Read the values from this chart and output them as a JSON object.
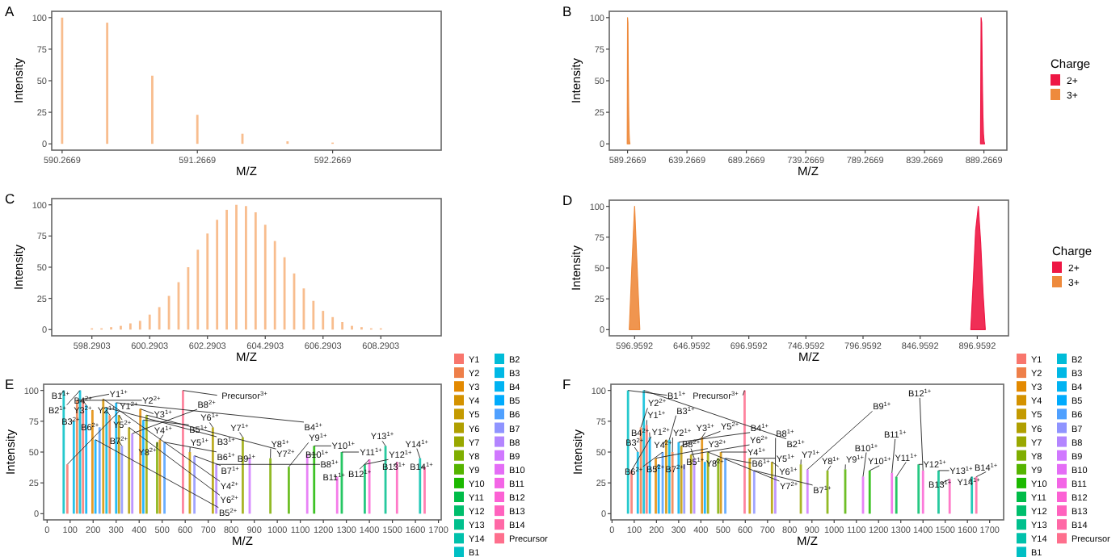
{
  "chart_data": [
    {
      "type": "bar",
      "title": "A",
      "xlabel": "M/Z",
      "ylabel": "Intensity",
      "xlim": [
        590.19,
        593.07
      ],
      "ylim": [
        -5,
        105
      ],
      "xticks": [
        590.2669,
        591.2669,
        592.2669
      ],
      "yticks": [
        0,
        25,
        50,
        75,
        100
      ],
      "grid": false,
      "legend": false,
      "series": [
        {
          "color": "#F7B27A",
          "x": [
            590.2669,
            590.6002,
            590.9336,
            591.2669,
            591.6002,
            591.9336,
            592.2669
          ],
          "values": [
            100,
            96,
            54,
            23,
            8,
            2,
            1
          ]
        }
      ]
    },
    {
      "type": "area",
      "title": "B",
      "xlabel": "M/Z",
      "ylabel": "Intensity",
      "xlim": [
        573.9,
        908.6
      ],
      "ylim": [
        -5,
        105
      ],
      "xticks": [
        589.2669,
        639.2669,
        689.2669,
        739.2669,
        789.2669,
        839.2669,
        889.2669
      ],
      "yticks": [
        0,
        25,
        50,
        75,
        100
      ],
      "grid": false,
      "legend": "right",
      "legend_title": "Charge",
      "series": [
        {
          "name": "2+",
          "color": "#EE1744",
          "x": [
            886.4,
            886.9,
            887.4,
            887.9,
            888.4,
            888.9,
            889.4,
            889.9
          ],
          "values": [
            0,
            100,
            96,
            54,
            23,
            8,
            2,
            0
          ]
        },
        {
          "name": "3+",
          "color": "#EE8A3C",
          "x": [
            589.0,
            589.27,
            589.6,
            589.93,
            590.27,
            590.6,
            590.93,
            591.3
          ],
          "values": [
            0,
            100,
            96,
            54,
            23,
            8,
            2,
            0
          ]
        }
      ]
    },
    {
      "type": "bar",
      "title": "C",
      "xlabel": "M/Z",
      "ylabel": "Intensity",
      "xlim": [
        596.9,
        610.38
      ],
      "ylim": [
        -5,
        105
      ],
      "xticks": [
        598.2903,
        600.2903,
        602.2903,
        604.2903,
        606.2903,
        608.2903
      ],
      "yticks": [
        0,
        25,
        50,
        75,
        100
      ],
      "grid": false,
      "legend": false,
      "series": [
        {
          "color": "#F7B27A",
          "x": [
            598.2903,
            598.6236,
            598.957,
            599.2903,
            599.6236,
            599.957,
            600.2903,
            600.6236,
            600.957,
            601.2903,
            601.6236,
            601.957,
            602.2903,
            602.6236,
            602.957,
            603.2903,
            603.6236,
            603.957,
            604.2903,
            604.6236,
            604.957,
            605.2903,
            605.6236,
            605.957,
            606.2903,
            606.6236,
            606.957,
            607.2903,
            607.6236,
            607.957,
            608.2903
          ],
          "values": [
            1,
            1,
            2,
            3,
            5,
            7,
            12,
            18,
            27,
            38,
            50,
            64,
            77,
            88,
            96,
            100,
            99,
            94,
            84,
            71,
            58,
            45,
            33,
            23,
            15,
            10,
            6,
            3,
            2,
            1,
            1
          ]
        }
      ]
    },
    {
      "type": "area",
      "title": "D",
      "xlabel": "M/Z",
      "ylabel": "Intensity",
      "xlim": [
        574.8,
        924.3
      ],
      "ylim": [
        -5,
        105
      ],
      "xticks": [
        596.9592,
        646.9592,
        696.9592,
        746.9592,
        796.9592,
        846.9592,
        896.9592
      ],
      "yticks": [
        0,
        25,
        50,
        75,
        100
      ],
      "grid": false,
      "legend": "right",
      "legend_title": "Charge",
      "series": [
        {
          "name": "2+",
          "color": "#EE1744",
          "x": [
            891.3,
            893.5,
            895.5,
            897.9,
            900,
            902,
            904
          ],
          "values": [
            0,
            40,
            80,
            100,
            70,
            30,
            0
          ]
        },
        {
          "name": "3+",
          "color": "#EE8A3C",
          "x": [
            592.3,
            594.5,
            596.96,
            599.2,
            601.5
          ],
          "values": [
            0,
            50,
            100,
            50,
            0
          ]
        }
      ]
    },
    {
      "type": "bar",
      "title": "E",
      "xlabel": "M/Z",
      "ylabel": "Intensity",
      "xlim": [
        -15,
        1712
      ],
      "ylim": [
        -5,
        105
      ],
      "xticks": [
        0,
        100,
        200,
        300,
        400,
        500,
        600,
        700,
        800,
        900,
        1000,
        1100,
        1200,
        1300,
        1400,
        1500,
        1600,
        1700
      ],
      "yticks": [
        0,
        25,
        50,
        75,
        100
      ],
      "grid": false,
      "legend": "right",
      "series": [
        {
          "name": "Y1",
          "color": "#F8766D",
          "x": [
            156,
            88
          ],
          "values": [
            93,
            40
          ]
        },
        {
          "name": "Y2",
          "color": "#EE7F49",
          "x": [
            272,
            130
          ],
          "values": [
            80,
            92
          ]
        },
        {
          "name": "Y3",
          "color": "#E38900",
          "x": [
            405,
            197
          ],
          "values": [
            85,
            84
          ]
        },
        {
          "name": "Y4",
          "color": "#D49200",
          "x": [
            490,
            244
          ],
          "values": [
            60,
            93
          ]
        },
        {
          "name": "Y5",
          "color": "#C49A00",
          "x": [
            620,
            312
          ],
          "values": [
            50,
            80
          ]
        },
        {
          "name": "Y6",
          "color": "#B09F00",
          "x": [
            720,
            356
          ],
          "values": [
            70,
            70
          ]
        },
        {
          "name": "Y7",
          "color": "#99A800",
          "x": [
            850,
            432
          ],
          "values": [
            62,
            80
          ]
        },
        {
          "name": "Y8",
          "color": "#7FAE00",
          "x": [
            970,
            478
          ],
          "values": [
            45,
            58
          ]
        },
        {
          "name": "Y9",
          "color": "#55B400",
          "x": [
            1050
          ],
          "values": [
            38
          ]
        },
        {
          "name": "Y10",
          "color": "#1CB900",
          "x": [
            1160
          ],
          "values": [
            55
          ]
        },
        {
          "name": "Y11",
          "color": "#00BC48",
          "x": [
            1280
          ],
          "values": [
            50
          ]
        },
        {
          "name": "Y12",
          "color": "#00BE6C",
          "x": [
            1380
          ],
          "values": [
            40
          ]
        },
        {
          "name": "Y13",
          "color": "#00C08D",
          "x": [
            1470
          ],
          "values": [
            55
          ]
        },
        {
          "name": "Y14",
          "color": "#00C1AB",
          "x": [
            1620
          ],
          "values": [
            45
          ]
        },
        {
          "name": "B1",
          "color": "#00BFC4",
          "x": [
            72
          ],
          "values": [
            100
          ]
        },
        {
          "name": "B2",
          "color": "#00BCD8",
          "x": [
            143
          ],
          "values": [
            100
          ]
        },
        {
          "name": "B3",
          "color": "#00B8E5",
          "x": [
            258,
            116
          ],
          "values": [
            86,
            75
          ]
        },
        {
          "name": "B4",
          "color": "#00B3F2",
          "x": [
            300,
            170
          ],
          "values": [
            90,
            88
          ]
        },
        {
          "name": "B5",
          "color": "#00ABFD",
          "x": [
            418,
            210
          ],
          "values": [
            76,
            60
          ]
        },
        {
          "name": "B6",
          "color": "#4FA0FF",
          "x": [
            510,
            228
          ],
          "values": [
            58,
            70
          ]
        },
        {
          "name": "B7",
          "color": "#8F94FF",
          "x": [
            640,
            325
          ],
          "values": [
            47,
            55
          ]
        },
        {
          "name": "B8",
          "color": "#B385FF",
          "x": [
            735,
            370
          ],
          "values": [
            40,
            65
          ]
        },
        {
          "name": "B9",
          "color": "#D078FF",
          "x": [
            880
          ],
          "values": [
            45
          ]
        },
        {
          "name": "B10",
          "color": "#E46DF6",
          "x": [
            1130
          ],
          "values": [
            48
          ]
        },
        {
          "name": "B11",
          "color": "#F365E6",
          "x": [
            1260
          ],
          "values": [
            30
          ]
        },
        {
          "name": "B12",
          "color": "#FC61D4",
          "x": [
            1400
          ],
          "values": [
            44
          ]
        },
        {
          "name": "B13",
          "color": "#FF63BE",
          "x": [
            1520
          ],
          "values": [
            42
          ]
        },
        {
          "name": "B14",
          "color": "#FF68A6",
          "x": [
            1640
          ],
          "values": [
            38
          ]
        },
        {
          "name": "Precursor",
          "color": "#FE6F8D",
          "x": [
            590.27
          ],
          "values": [
            100
          ]
        }
      ],
      "annotations": [
        {
          "text": "Y1$^{1+}$",
          "x": 156,
          "y": 93
        },
        {
          "text": "Y1$^{2+}$",
          "x": 88,
          "y": 40
        },
        {
          "text": "Y2$^{1+}$",
          "x": 272,
          "y": 80
        },
        {
          "text": "Y2$^{2+}$",
          "x": 130,
          "y": 92
        },
        {
          "text": "Y3$^{1+}$",
          "x": 405,
          "y": 85
        },
        {
          "text": "Y3$^{2+}$",
          "x": 197,
          "y": 84
        },
        {
          "text": "Y4$^{1+}$",
          "x": 490,
          "y": 60
        },
        {
          "text": "Y4$^{2+}$",
          "x": 244,
          "y": 93
        },
        {
          "text": "Y5$^{1+}$",
          "x": 620,
          "y": 50
        },
        {
          "text": "Y5$^{2+}$",
          "x": 312,
          "y": 80
        },
        {
          "text": "Y6$^{1+}$",
          "x": 720,
          "y": 70
        },
        {
          "text": "Y6$^{2+}$",
          "x": 356,
          "y": 70
        },
        {
          "text": "Y7$^{1+}$",
          "x": 850,
          "y": 62
        },
        {
          "text": "Y7$^{2+}$",
          "x": 432,
          "y": 80
        },
        {
          "text": "Y8$^{1+}$",
          "x": 970,
          "y": 45
        },
        {
          "text": "Y8$^{2+}$",
          "x": 478,
          "y": 58
        },
        {
          "text": "Y9$^{1+}$",
          "x": 1050,
          "y": 38
        },
        {
          "text": "Y10$^{1+}$",
          "x": 1160,
          "y": 55
        },
        {
          "text": "Y11$^{1+}$",
          "x": 1280,
          "y": 50
        },
        {
          "text": "Y12$^{1+}$",
          "x": 1380,
          "y": 40
        },
        {
          "text": "Y13$^{1+}$",
          "x": 1470,
          "y": 55
        },
        {
          "text": "Y14$^{1+}$",
          "x": 1620,
          "y": 45
        },
        {
          "text": "B1$^{1+}$",
          "x": 72,
          "y": 100
        },
        {
          "text": "B2$^{1+}$",
          "x": 143,
          "y": 100
        },
        {
          "text": "B3$^{1+}$",
          "x": 258,
          "y": 86
        },
        {
          "text": "B3$^{2+}$",
          "x": 116,
          "y": 75
        },
        {
          "text": "B4$^{1+}$",
          "x": 300,
          "y": 90
        },
        {
          "text": "B4$^{2+}$",
          "x": 170,
          "y": 88
        },
        {
          "text": "B5$^{1+}$",
          "x": 418,
          "y": 76
        },
        {
          "text": "B5$^{2+}$",
          "x": 210,
          "y": 60
        },
        {
          "text": "B6$^{1+}$",
          "x": 510,
          "y": 58
        },
        {
          "text": "B6$^{2+}$",
          "x": 228,
          "y": 70
        },
        {
          "text": "B7$^{1+}$",
          "x": 640,
          "y": 47
        },
        {
          "text": "B7$^{2+}$",
          "x": 325,
          "y": 55
        },
        {
          "text": "B8$^{1+}$",
          "x": 735,
          "y": 40
        },
        {
          "text": "B8$^{2+}$",
          "x": 370,
          "y": 65
        },
        {
          "text": "B9$^{1+}$",
          "x": 880,
          "y": 45
        },
        {
          "text": "B10$^{1+}$",
          "x": 1130,
          "y": 48
        },
        {
          "text": "B11$^{1+}$",
          "x": 1260,
          "y": 30
        },
        {
          "text": "B12$^{1+}$",
          "x": 1400,
          "y": 44
        },
        {
          "text": "B13$^{1+}$",
          "x": 1520,
          "y": 42
        },
        {
          "text": "B14$^{1+}$",
          "x": 1640,
          "y": 38
        },
        {
          "text": "Precursor$^{3+}$",
          "x": 590.27,
          "y": 100
        }
      ]
    },
    {
      "type": "bar",
      "title": "F",
      "xlabel": "M/Z",
      "ylabel": "Intensity",
      "xlim": [
        -5,
        1763
      ],
      "ylim": [
        -5,
        105
      ],
      "xticks": [
        0,
        100,
        200,
        300,
        400,
        500,
        600,
        700,
        800,
        900,
        1000,
        1100,
        1200,
        1300,
        1400,
        1500,
        1600,
        1700
      ],
      "yticks": [
        0,
        25,
        50,
        75,
        100
      ],
      "grid": false,
      "legend": "right",
      "series": [
        {
          "name": "Y1",
          "color": "#F8766D",
          "x": [
            156,
            88
          ],
          "values": [
            72,
            35
          ]
        },
        {
          "name": "Y2",
          "color": "#EE7F49",
          "x": [
            272,
            130
          ],
          "values": [
            50,
            70
          ]
        },
        {
          "name": "Y3",
          "color": "#E38900",
          "x": [
            405,
            197
          ],
          "values": [
            62,
            45
          ]
        },
        {
          "name": "Y4",
          "color": "#D49200",
          "x": [
            490,
            244
          ],
          "values": [
            50,
            60
          ]
        },
        {
          "name": "Y5",
          "color": "#C49A00",
          "x": [
            620,
            312
          ],
          "values": [
            45,
            55
          ]
        },
        {
          "name": "Y6",
          "color": "#B09F00",
          "x": [
            720,
            356
          ],
          "values": [
            42,
            48
          ]
        },
        {
          "name": "Y7",
          "color": "#99A800",
          "x": [
            850,
            432
          ],
          "values": [
            40,
            50
          ]
        },
        {
          "name": "Y8",
          "color": "#7FAE00",
          "x": [
            970,
            478
          ],
          "values": [
            35,
            45
          ]
        },
        {
          "name": "Y9",
          "color": "#55B400",
          "x": [
            1050
          ],
          "values": [
            36
          ]
        },
        {
          "name": "Y10",
          "color": "#1CB900",
          "x": [
            1160
          ],
          "values": [
            35
          ]
        },
        {
          "name": "Y11",
          "color": "#00BC48",
          "x": [
            1280
          ],
          "values": [
            30
          ]
        },
        {
          "name": "Y12",
          "color": "#00BE6C",
          "x": [
            1380
          ],
          "values": [
            40
          ]
        },
        {
          "name": "Y13",
          "color": "#00C08D",
          "x": [
            1470
          ],
          "values": [
            35
          ]
        },
        {
          "name": "Y14",
          "color": "#00C1AB",
          "x": [
            1620
          ],
          "values": [
            30
          ]
        },
        {
          "name": "B1",
          "color": "#00BFC4",
          "x": [
            72
          ],
          "values": [
            100
          ]
        },
        {
          "name": "B2",
          "color": "#00BCD8",
          "x": [
            143
          ],
          "values": [
            100
          ]
        },
        {
          "name": "B3",
          "color": "#00B8E5",
          "x": [
            258,
            116
          ],
          "values": [
            60,
            50
          ]
        },
        {
          "name": "B4",
          "color": "#00B3F2",
          "x": [
            300,
            170
          ],
          "values": [
            58,
            62
          ]
        },
        {
          "name": "B5",
          "color": "#00ABFD",
          "x": [
            418,
            210
          ],
          "values": [
            42,
            40
          ]
        },
        {
          "name": "B6",
          "color": "#4FA0FF",
          "x": [
            510,
            228
          ],
          "values": [
            45,
            50
          ]
        },
        {
          "name": "B7",
          "color": "#8F94FF",
          "x": [
            640,
            325
          ],
          "values": [
            35,
            40
          ]
        },
        {
          "name": "B8",
          "color": "#B385FF",
          "x": [
            735,
            370
          ],
          "values": [
            30,
            45
          ]
        },
        {
          "name": "B9",
          "color": "#D078FF",
          "x": [
            880
          ],
          "values": [
            36
          ]
        },
        {
          "name": "B10",
          "color": "#E46DF6",
          "x": [
            1130
          ],
          "values": [
            30
          ]
        },
        {
          "name": "B11",
          "color": "#F365E6",
          "x": [
            1260
          ],
          "values": [
            33
          ]
        },
        {
          "name": "B12",
          "color": "#FC61D4",
          "x": [
            1400
          ],
          "values": [
            35
          ]
        },
        {
          "name": "B13",
          "color": "#FF63BE",
          "x": [
            1520
          ],
          "values": [
            28
          ]
        },
        {
          "name": "B14",
          "color": "#FF68A6",
          "x": [
            1640
          ],
          "values": [
            30
          ]
        },
        {
          "name": "Precursor",
          "color": "#FE6F8D",
          "x": [
            596.96
          ],
          "values": [
            100
          ]
        }
      ],
      "annotations": [
        {
          "text": "Y1$^{1+}$",
          "x": 156,
          "y": 72
        },
        {
          "text": "Y1$^{2+}$",
          "x": 88,
          "y": 35
        },
        {
          "text": "Y2$^{1+}$",
          "x": 272,
          "y": 50
        },
        {
          "text": "Y2$^{2+}$",
          "x": 130,
          "y": 70
        },
        {
          "text": "Y3$^{1+}$",
          "x": 405,
          "y": 62
        },
        {
          "text": "Y3$^{2+}$",
          "x": 197,
          "y": 45
        },
        {
          "text": "Y4$^{1+}$",
          "x": 490,
          "y": 50
        },
        {
          "text": "Y4$^{2+}$",
          "x": 244,
          "y": 60
        },
        {
          "text": "Y5$^{1+}$",
          "x": 620,
          "y": 45
        },
        {
          "text": "Y5$^{2+}$",
          "x": 312,
          "y": 55
        },
        {
          "text": "Y6$^{1+}$",
          "x": 720,
          "y": 42
        },
        {
          "text": "Y6$^{2+}$",
          "x": 356,
          "y": 48
        },
        {
          "text": "Y7$^{1+}$",
          "x": 850,
          "y": 40
        },
        {
          "text": "Y7$^{2+}$",
          "x": 432,
          "y": 50
        },
        {
          "text": "Y8$^{1+}$",
          "x": 970,
          "y": 35
        },
        {
          "text": "Y8$^{2+}$",
          "x": 478,
          "y": 45
        },
        {
          "text": "Y9$^{1+}$",
          "x": 1050,
          "y": 36
        },
        {
          "text": "Y10$^{1+}$",
          "x": 1160,
          "y": 35
        },
        {
          "text": "Y11$^{1+}$",
          "x": 1280,
          "y": 30
        },
        {
          "text": "Y12$^{1+}$",
          "x": 1380,
          "y": 40
        },
        {
          "text": "Y13$^{1+}$",
          "x": 1470,
          "y": 35
        },
        {
          "text": "Y14$^{1+}$",
          "x": 1620,
          "y": 30
        },
        {
          "text": "B1$^{1+}$",
          "x": 72,
          "y": 100
        },
        {
          "text": "B2$^{1+}$",
          "x": 143,
          "y": 100
        },
        {
          "text": "B3$^{1+}$",
          "x": 258,
          "y": 60
        },
        {
          "text": "B3$^{2+}$",
          "x": 116,
          "y": 50
        },
        {
          "text": "B4$^{1+}$",
          "x": 300,
          "y": 58
        },
        {
          "text": "B4$^{2+}$",
          "x": 170,
          "y": 62
        },
        {
          "text": "B5$^{1+}$",
          "x": 418,
          "y": 42
        },
        {
          "text": "B5$^{2+}$",
          "x": 210,
          "y": 40
        },
        {
          "text": "B6$^{1+}$",
          "x": 510,
          "y": 45
        },
        {
          "text": "B6$^{2+}$",
          "x": 228,
          "y": 50
        },
        {
          "text": "B7$^{1+}$",
          "x": 640,
          "y": 35
        },
        {
          "text": "B7$^{2+}$",
          "x": 325,
          "y": 40
        },
        {
          "text": "B8$^{1+}$",
          "x": 735,
          "y": 30
        },
        {
          "text": "B8$^{2+}$",
          "x": 370,
          "y": 45
        },
        {
          "text": "B9$^{1+}$",
          "x": 880,
          "y": 36
        },
        {
          "text": "B10$^{1+}$",
          "x": 1130,
          "y": 30
        },
        {
          "text": "B11$^{1+}$",
          "x": 1260,
          "y": 33
        },
        {
          "text": "B12$^{1+}$",
          "x": 1400,
          "y": 35
        },
        {
          "text": "B13$^{1+}$",
          "x": 1520,
          "y": 28
        },
        {
          "text": "B14$^{1+}$",
          "x": 1640,
          "y": 30
        },
        {
          "text": "Precursor$^{3+}$",
          "x": 596.96,
          "y": 100
        }
      ]
    }
  ]
}
